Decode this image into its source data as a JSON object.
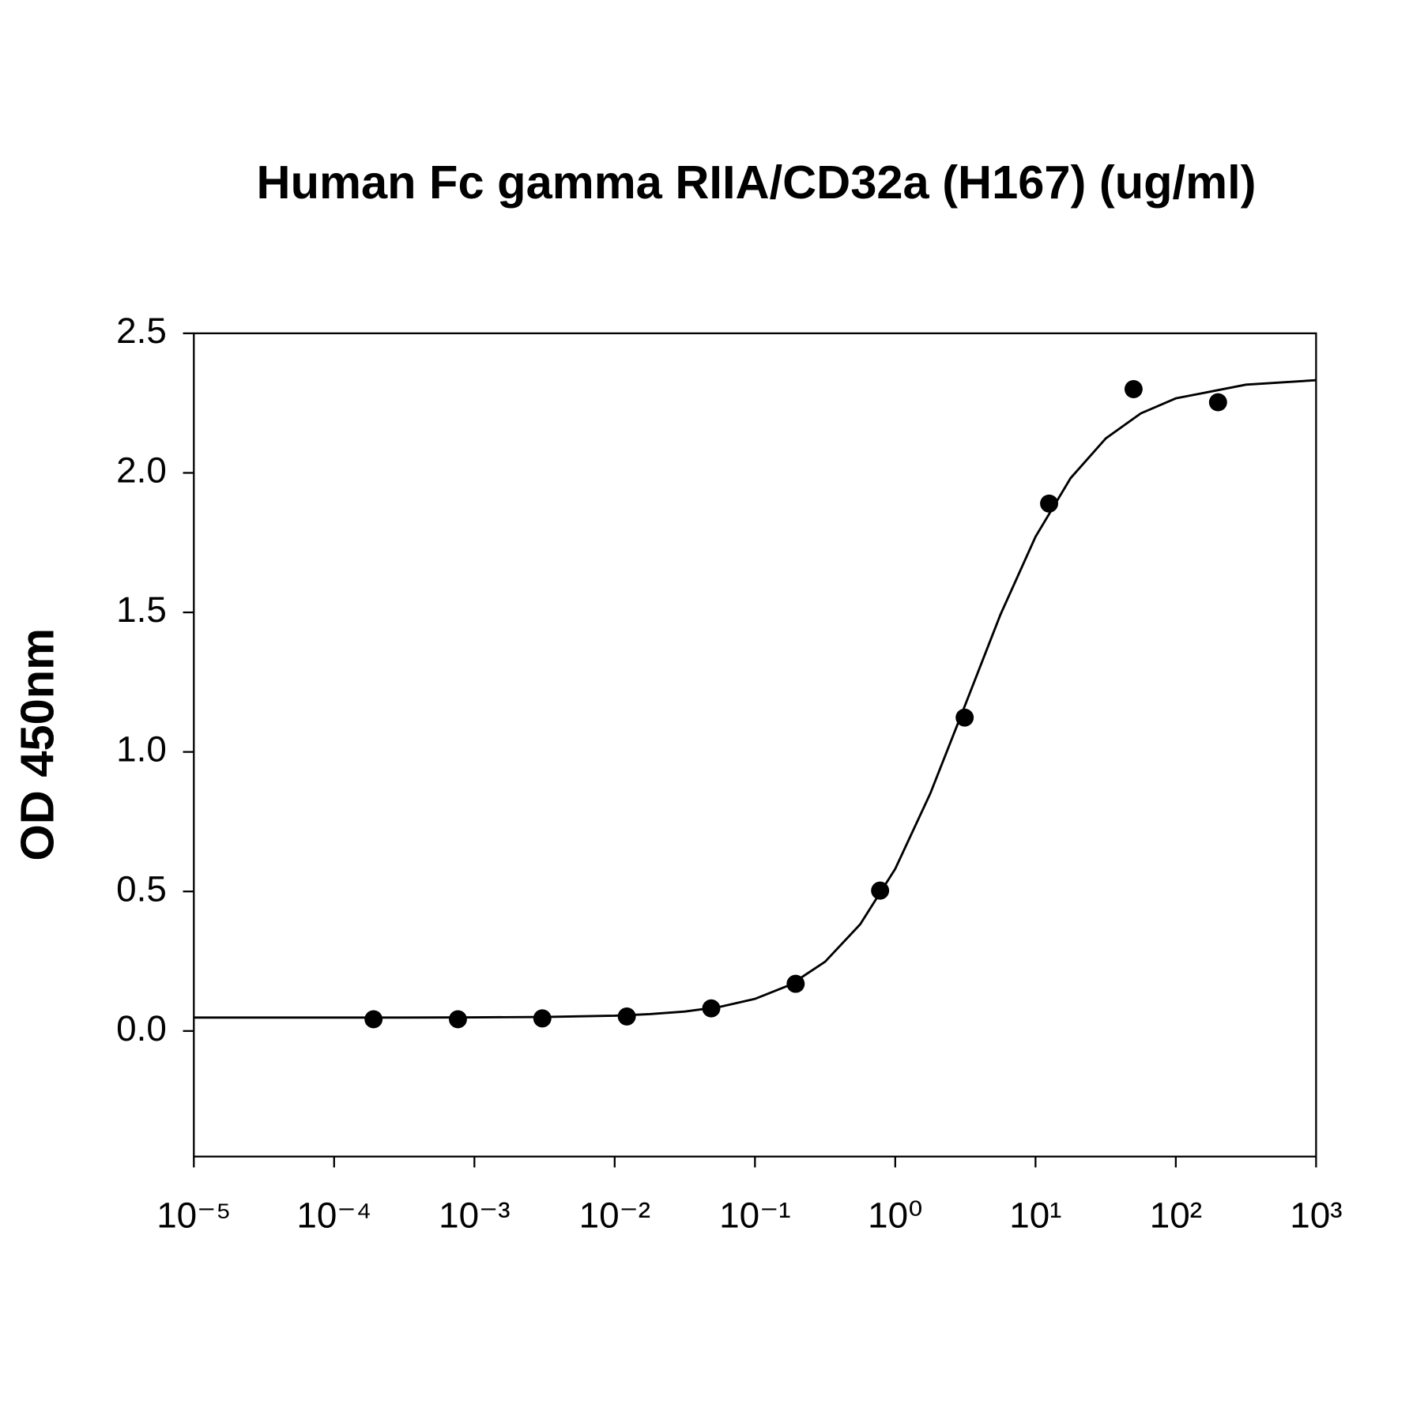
{
  "chart_data": {
    "type": "scatter",
    "title": "Human Fc gamma RIIA/CD32a (H167) (ug/ml)",
    "ylabel": "OD 450nm",
    "xscale": "log",
    "xlim": [
      1e-05,
      1000
    ],
    "xticks": [
      {
        "value": 1e-05,
        "label": "10⁻⁵"
      },
      {
        "value": 0.0001,
        "label": "10⁻⁴"
      },
      {
        "value": 0.001,
        "label": "10⁻³"
      },
      {
        "value": 0.01,
        "label": "10⁻²"
      },
      {
        "value": 0.1,
        "label": "10⁻¹"
      },
      {
        "value": 1,
        "label": "10⁰"
      },
      {
        "value": 10,
        "label": "10¹"
      },
      {
        "value": 100,
        "label": "10²"
      },
      {
        "value": 1000,
        "label": "10³"
      }
    ],
    "ylim": [
      -0.45,
      2.5
    ],
    "yticks": [
      {
        "value": 0,
        "label": "0.0"
      },
      {
        "value": 0.5,
        "label": "0.5"
      },
      {
        "value": 1,
        "label": "1.0"
      },
      {
        "value": 1.5,
        "label": "1.5"
      },
      {
        "value": 2,
        "label": "2.0"
      },
      {
        "value": 2.5,
        "label": "2.5"
      }
    ],
    "series": [
      {
        "type": "scatter",
        "color": "#000000",
        "x": [
          0.000191,
          0.000763,
          0.00305,
          0.0122,
          0.0488,
          0.195,
          0.78,
          3.125,
          12.5,
          50,
          200
        ],
        "values": [
          0.042,
          0.042,
          0.045,
          0.052,
          0.081,
          0.169,
          0.503,
          1.123,
          1.89,
          2.3,
          2.253
        ]
      },
      {
        "type": "line",
        "color": "#000000",
        "x": [
          1e-05,
          3.16e-05,
          0.0001,
          0.000316,
          0.001,
          0.00316,
          0.01,
          0.0178,
          0.0316,
          0.0562,
          0.1,
          0.178,
          0.316,
          0.562,
          1,
          1.778,
          3.162,
          5.623,
          10,
          17.78,
          31.62,
          56.23,
          100,
          316.2,
          1000
        ],
        "values": [
          0.048,
          0.048,
          0.048,
          0.0482,
          0.0487,
          0.0502,
          0.0549,
          0.0603,
          0.0697,
          0.0864,
          0.115,
          0.165,
          0.248,
          0.382,
          0.581,
          0.851,
          1.17,
          1.492,
          1.771,
          1.981,
          2.123,
          2.213,
          2.267,
          2.316,
          2.332
        ]
      }
    ]
  }
}
